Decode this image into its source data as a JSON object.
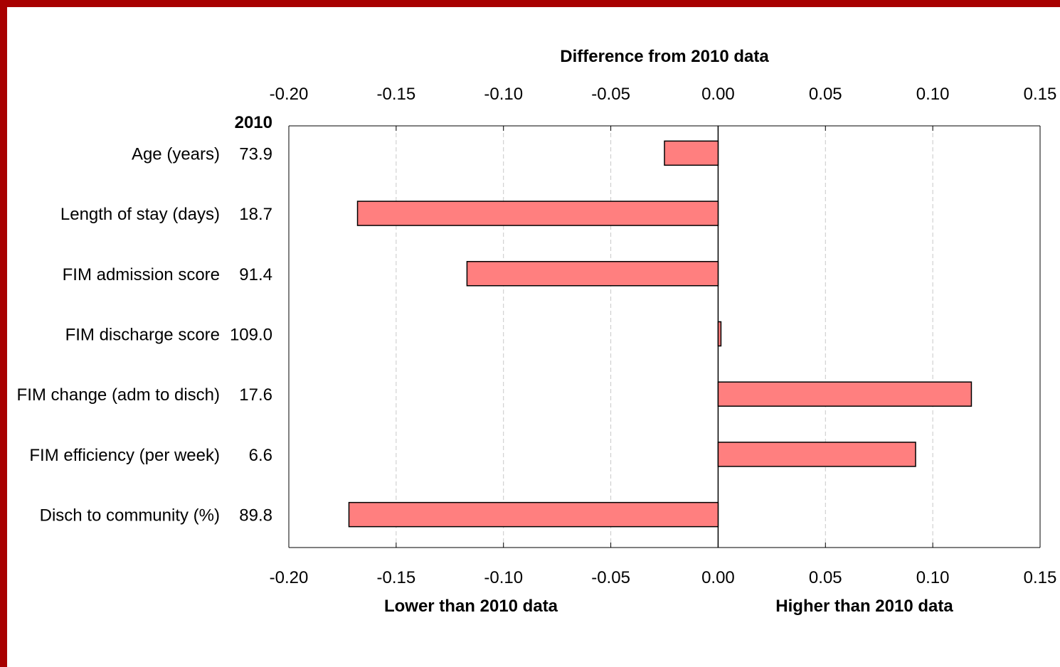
{
  "colors": {
    "frame": "#a80000",
    "bar_fill": "#ff7f7f",
    "bar_stroke": "#000000",
    "grid": "#c8c8c8"
  },
  "chart_data": {
    "type": "bar",
    "orientation": "horizontal",
    "title": "Difference from 2010 data",
    "baseline_header": "2010",
    "categories": [
      "Age (years)",
      "Length of stay (days)",
      "FIM admission score",
      "FIM discharge score",
      "FIM change (adm to disch)",
      "FIM efficiency (per week)",
      "Disch to community (%)"
    ],
    "baseline_values": [
      "73.9",
      "18.7",
      "91.4",
      "109.0",
      "17.6",
      "6.6",
      "89.8"
    ],
    "values": [
      -0.025,
      -0.168,
      -0.117,
      0.001,
      0.118,
      0.092,
      -0.172
    ],
    "xlim": [
      -0.2,
      0.15
    ],
    "xticks": [
      "-0.20",
      "-0.15",
      "-0.10",
      "-0.05",
      "0.00",
      "0.05",
      "0.10",
      "0.15"
    ],
    "xlabel_left": "Lower than 2010 data",
    "xlabel_right": "Higher than 2010 data",
    "grid": "vertical dashed"
  }
}
